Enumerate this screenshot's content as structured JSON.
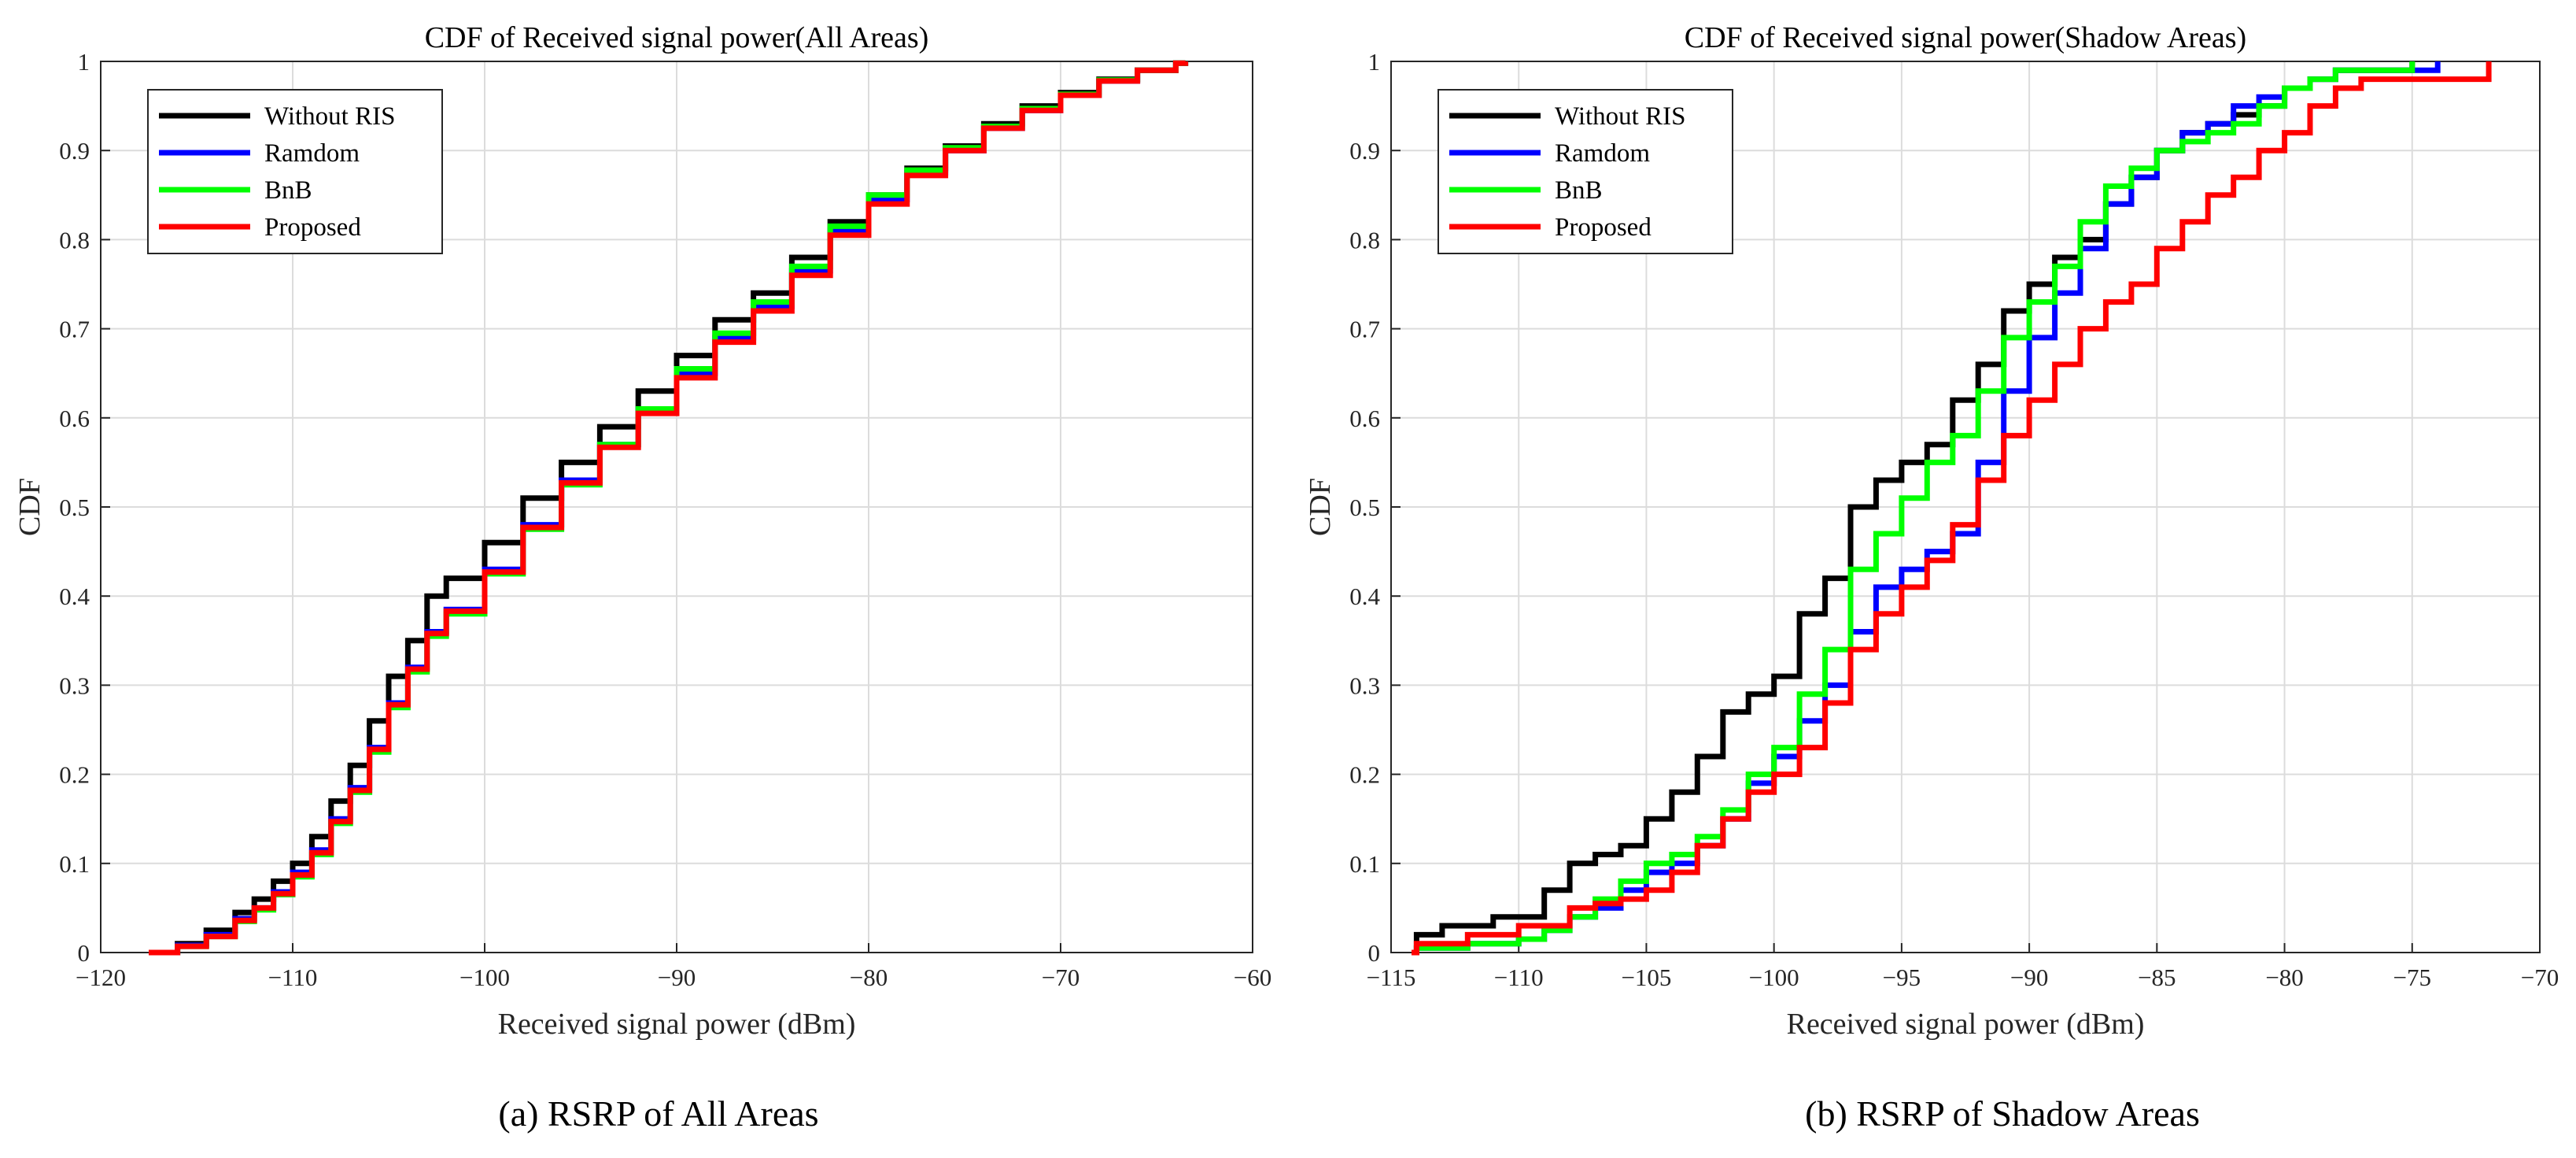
{
  "figure": {
    "captions": [
      "(a) RSRP of All Areas",
      "(b) RSRP of Shadow Areas"
    ]
  },
  "series_colors": {
    "Without RIS": "#000000",
    "Ramdom": "#0000FF",
    "BnB": "#00FF00",
    "Proposed": "#FF0000"
  },
  "chart_data": [
    {
      "type": "line",
      "title": "CDF of Received signal power(All Areas)",
      "xlabel": "Received signal power (dBm)",
      "ylabel": "CDF",
      "xlim": [
        -120,
        -60
      ],
      "ylim": [
        0,
        1
      ],
      "xticks": [
        "−120",
        "−110",
        "−100",
        "−90",
        "−80",
        "−70",
        "−60"
      ],
      "yticks": [
        "0",
        "0.1",
        "0.2",
        "0.3",
        "0.4",
        "0.5",
        "0.6",
        "0.7",
        "0.8",
        "0.9",
        "1"
      ],
      "grid": true,
      "legend": "top-left",
      "series": [
        {
          "name": "Without RIS",
          "x": [
            -117.5,
            -116,
            -114.5,
            -113,
            -112,
            -111,
            -110,
            -109,
            -108,
            -107,
            -106,
            -105,
            -104,
            -103,
            -102,
            -100,
            -98,
            -96,
            -94,
            -92,
            -90,
            -88,
            -86,
            -84,
            -82,
            -80,
            -78,
            -76,
            -74,
            -72,
            -70,
            -68,
            -66,
            -64,
            -63.5
          ],
          "y": [
            0,
            0.01,
            0.025,
            0.045,
            0.06,
            0.08,
            0.1,
            0.13,
            0.17,
            0.21,
            0.26,
            0.31,
            0.35,
            0.4,
            0.42,
            0.46,
            0.51,
            0.55,
            0.59,
            0.63,
            0.67,
            0.71,
            0.74,
            0.78,
            0.82,
            0.85,
            0.88,
            0.905,
            0.93,
            0.95,
            0.965,
            0.98,
            0.99,
            0.998,
            1
          ]
        },
        {
          "name": "Ramdom",
          "x": [
            -117.5,
            -116,
            -114.5,
            -113,
            -112,
            -111,
            -110,
            -109,
            -108,
            -107,
            -106,
            -105,
            -104,
            -103,
            -102,
            -100,
            -98,
            -96,
            -94,
            -92,
            -90,
            -88,
            -86,
            -84,
            -82,
            -80,
            -78,
            -76,
            -74,
            -72,
            -70,
            -68,
            -66,
            -64,
            -63.5
          ],
          "y": [
            0,
            0.008,
            0.02,
            0.038,
            0.05,
            0.068,
            0.09,
            0.115,
            0.15,
            0.185,
            0.23,
            0.28,
            0.32,
            0.36,
            0.385,
            0.43,
            0.48,
            0.53,
            0.57,
            0.61,
            0.65,
            0.69,
            0.725,
            0.765,
            0.81,
            0.845,
            0.875,
            0.9,
            0.925,
            0.945,
            0.962,
            0.978,
            0.99,
            0.998,
            1
          ]
        },
        {
          "name": "BnB",
          "x": [
            -117.5,
            -116,
            -114.5,
            -113,
            -112,
            -111,
            -110,
            -109,
            -108,
            -107,
            -106,
            -105,
            -104,
            -103,
            -102,
            -100,
            -98,
            -96,
            -94,
            -92,
            -90,
            -88,
            -86,
            -84,
            -82,
            -80,
            -78,
            -76,
            -74,
            -72,
            -70,
            -68,
            -66,
            -64,
            -63.5
          ],
          "y": [
            0,
            0.007,
            0.018,
            0.035,
            0.048,
            0.065,
            0.085,
            0.11,
            0.145,
            0.18,
            0.225,
            0.275,
            0.315,
            0.355,
            0.38,
            0.425,
            0.475,
            0.525,
            0.57,
            0.61,
            0.655,
            0.695,
            0.73,
            0.77,
            0.815,
            0.85,
            0.878,
            0.903,
            0.927,
            0.947,
            0.963,
            0.979,
            0.99,
            0.998,
            1
          ]
        },
        {
          "name": "Proposed",
          "x": [
            -117.5,
            -116,
            -114.5,
            -113,
            -112,
            -111,
            -110,
            -109,
            -108,
            -107,
            -106,
            -105,
            -104,
            -103,
            -102,
            -100,
            -98,
            -96,
            -94,
            -92,
            -90,
            -88,
            -86,
            -84,
            -82,
            -80,
            -78,
            -76,
            -74,
            -72,
            -70,
            -68,
            -66,
            -64,
            -63.5
          ],
          "y": [
            0,
            0.007,
            0.018,
            0.036,
            0.05,
            0.066,
            0.087,
            0.112,
            0.147,
            0.182,
            0.228,
            0.278,
            0.318,
            0.358,
            0.383,
            0.427,
            0.477,
            0.527,
            0.567,
            0.605,
            0.645,
            0.685,
            0.72,
            0.76,
            0.805,
            0.84,
            0.872,
            0.9,
            0.925,
            0.945,
            0.962,
            0.978,
            0.99,
            0.998,
            1
          ]
        }
      ]
    },
    {
      "type": "line",
      "title": "CDF of Received signal power(Shadow Areas)",
      "xlabel": "Received signal power (dBm)",
      "ylabel": "CDF",
      "xlim": [
        -115,
        -70
      ],
      "ylim": [
        0,
        1
      ],
      "xticks": [
        "−115",
        "−110",
        "−105",
        "−100",
        "−95",
        "−90",
        "−85",
        "−80",
        "−75",
        "−70"
      ],
      "yticks": [
        "0",
        "0.1",
        "0.2",
        "0.3",
        "0.4",
        "0.5",
        "0.6",
        "0.7",
        "0.8",
        "0.9",
        "1"
      ],
      "grid": true,
      "legend": "top-left",
      "series": [
        {
          "name": "Without RIS",
          "x": [
            -114.2,
            -114,
            -113,
            -111,
            -109,
            -108,
            -107,
            -106,
            -105,
            -104,
            -103,
            -102,
            -101,
            -100,
            -99,
            -98,
            -97,
            -96,
            -95,
            -94,
            -93,
            -92,
            -91,
            -90,
            -89,
            -88,
            -87,
            -86,
            -85,
            -84,
            -83,
            -82,
            -81,
            -80,
            -79,
            -78,
            -75
          ],
          "y": [
            0,
            0.02,
            0.03,
            0.04,
            0.07,
            0.1,
            0.11,
            0.12,
            0.15,
            0.18,
            0.22,
            0.27,
            0.29,
            0.31,
            0.38,
            0.42,
            0.5,
            0.53,
            0.55,
            0.57,
            0.62,
            0.66,
            0.72,
            0.75,
            0.78,
            0.8,
            0.84,
            0.87,
            0.9,
            0.92,
            0.93,
            0.94,
            0.95,
            0.97,
            0.98,
            0.99,
            1
          ]
        },
        {
          "name": "Ramdom",
          "x": [
            -114.2,
            -114,
            -112,
            -110,
            -109,
            -108,
            -107,
            -106,
            -105,
            -104,
            -103,
            -102,
            -101,
            -100,
            -99,
            -98,
            -97,
            -96,
            -95,
            -94,
            -93,
            -92,
            -91,
            -90,
            -89,
            -88,
            -87,
            -86,
            -85,
            -84,
            -83,
            -82,
            -81,
            -80,
            -79,
            -78,
            -74
          ],
          "y": [
            0,
            0.005,
            0.01,
            0.015,
            0.025,
            0.04,
            0.05,
            0.07,
            0.09,
            0.1,
            0.12,
            0.15,
            0.19,
            0.22,
            0.26,
            0.3,
            0.36,
            0.41,
            0.43,
            0.45,
            0.47,
            0.55,
            0.63,
            0.69,
            0.74,
            0.79,
            0.84,
            0.87,
            0.9,
            0.92,
            0.93,
            0.95,
            0.96,
            0.97,
            0.98,
            0.99,
            1
          ]
        },
        {
          "name": "BnB",
          "x": [
            -114.2,
            -114,
            -112,
            -110,
            -109,
            -108,
            -107,
            -106,
            -105,
            -104,
            -103,
            -102,
            -101,
            -100,
            -99,
            -98,
            -97,
            -96,
            -95,
            -94,
            -93,
            -92,
            -91,
            -90,
            -89,
            -88,
            -87,
            -86,
            -85,
            -84,
            -83,
            -82,
            -81,
            -80,
            -79,
            -78,
            -75
          ],
          "y": [
            0,
            0.005,
            0.01,
            0.015,
            0.025,
            0.04,
            0.06,
            0.08,
            0.1,
            0.11,
            0.13,
            0.16,
            0.2,
            0.23,
            0.29,
            0.34,
            0.43,
            0.47,
            0.51,
            0.55,
            0.58,
            0.63,
            0.69,
            0.73,
            0.77,
            0.82,
            0.86,
            0.88,
            0.9,
            0.91,
            0.92,
            0.93,
            0.95,
            0.97,
            0.98,
            0.99,
            1
          ]
        },
        {
          "name": "Proposed",
          "x": [
            -114.2,
            -114,
            -112,
            -110,
            -108,
            -107,
            -106,
            -105,
            -104,
            -103,
            -102,
            -101,
            -100,
            -99,
            -98,
            -97,
            -96,
            -95,
            -94,
            -93,
            -92,
            -91,
            -90,
            -89,
            -88,
            -87,
            -86,
            -85,
            -84,
            -83,
            -82,
            -81,
            -80,
            -79,
            -78,
            -77,
            -72
          ],
          "y": [
            0,
            0.01,
            0.02,
            0.03,
            0.05,
            0.055,
            0.06,
            0.07,
            0.09,
            0.12,
            0.15,
            0.18,
            0.2,
            0.23,
            0.28,
            0.34,
            0.38,
            0.41,
            0.44,
            0.48,
            0.53,
            0.58,
            0.62,
            0.66,
            0.7,
            0.73,
            0.75,
            0.79,
            0.82,
            0.85,
            0.87,
            0.9,
            0.92,
            0.95,
            0.97,
            0.98,
            1
          ]
        }
      ]
    }
  ]
}
